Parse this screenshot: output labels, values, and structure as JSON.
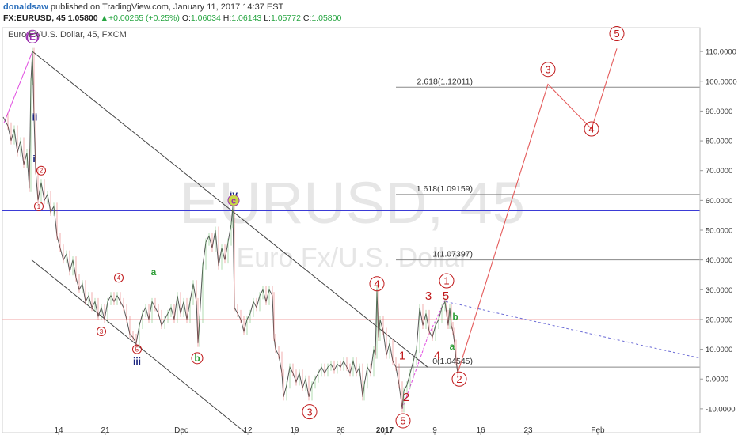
{
  "header": {
    "author": "donaldsaw",
    "published_text": "published on TradingView.com, January 11, 2017 14:37 EST",
    "symbol": "FX:EURUSD, 45",
    "last": "1.05800",
    "change": "+0.00265 (+0.25%)",
    "o_label": "O:",
    "o_value": "1.06034",
    "h_label": "H:",
    "h_value": "1.06143",
    "l_label": "L:",
    "l_value": "1.05772",
    "c_label": "C:",
    "c_value": "1.05800"
  },
  "chart_data": {
    "type": "line",
    "title": "Euro Fx/U.S. Dollar, 45, FXCM",
    "watermark": {
      "symbol": "EURUSD, 45",
      "name": "Euro Fx/U.S. Dollar"
    },
    "y_axis_ticks": [
      "110.0000",
      "100.0000",
      "90.0000",
      "80.0000",
      "70.0000",
      "60.0000",
      "50.0000",
      "40.0000",
      "30.0000",
      "20.0000",
      "10.0000",
      "0.0000",
      "-10.0000"
    ],
    "y_axis_values": [
      110,
      100,
      90,
      80,
      70,
      60,
      50,
      40,
      30,
      20,
      10,
      0,
      -10
    ],
    "ylim": [
      -18,
      118
    ],
    "x_axis_ticks": [
      {
        "label": "14",
        "pos": 74
      },
      {
        "label": "21",
        "pos": 133
      },
      {
        "label": "Dec",
        "pos": 229
      },
      {
        "label": "12",
        "pos": 313
      },
      {
        "label": "19",
        "pos": 372
      },
      {
        "label": "26",
        "pos": 430
      },
      {
        "label": "2017",
        "pos": 486
      },
      {
        "label": "9",
        "pos": 549
      },
      {
        "label": "16",
        "pos": 607
      },
      {
        "label": "23",
        "pos": 667
      },
      {
        "label": "Feb",
        "pos": 755
      }
    ],
    "fib_levels": [
      {
        "label": "2.618(1.12011)",
        "value": 98
      },
      {
        "label": "1.618(1.09159)",
        "value": 62
      },
      {
        "label": "1(1.07397)",
        "value": 40
      },
      {
        "label": "0(1.04545)",
        "value": 4
      }
    ],
    "horizontal_levels": [
      56.5,
      20
    ],
    "price_path": [
      [
        4,
        88
      ],
      [
        10,
        85
      ],
      [
        14,
        80
      ],
      [
        18,
        84
      ],
      [
        22,
        76
      ],
      [
        26,
        80
      ],
      [
        30,
        72
      ],
      [
        34,
        76
      ],
      [
        37,
        64
      ],
      [
        39,
        100
      ],
      [
        41,
        110
      ],
      [
        43,
        88
      ],
      [
        45,
        70
      ],
      [
        48,
        60
      ],
      [
        52,
        66
      ],
      [
        56,
        60
      ],
      [
        60,
        62
      ],
      [
        64,
        56
      ],
      [
        68,
        58
      ],
      [
        72,
        48
      ],
      [
        76,
        44
      ],
      [
        80,
        40
      ],
      [
        84,
        42
      ],
      [
        88,
        36
      ],
      [
        92,
        40
      ],
      [
        96,
        34
      ],
      [
        100,
        30
      ],
      [
        104,
        32
      ],
      [
        108,
        26
      ],
      [
        112,
        28
      ],
      [
        116,
        24
      ],
      [
        120,
        26
      ],
      [
        124,
        21
      ],
      [
        128,
        24
      ],
      [
        132,
        20
      ],
      [
        136,
        26
      ],
      [
        140,
        28
      ],
      [
        144,
        26
      ],
      [
        148,
        28
      ],
      [
        152,
        26
      ],
      [
        156,
        24
      ],
      [
        160,
        20
      ],
      [
        164,
        15
      ],
      [
        168,
        14
      ],
      [
        172,
        12
      ],
      [
        176,
        18
      ],
      [
        180,
        22
      ],
      [
        184,
        24
      ],
      [
        188,
        20
      ],
      [
        192,
        26
      ],
      [
        196,
        24
      ],
      [
        200,
        22
      ],
      [
        204,
        18
      ],
      [
        208,
        20
      ],
      [
        212,
        22
      ],
      [
        216,
        24
      ],
      [
        220,
        20
      ],
      [
        224,
        28
      ],
      [
        228,
        22
      ],
      [
        232,
        26
      ],
      [
        236,
        20
      ],
      [
        240,
        26
      ],
      [
        244,
        32
      ],
      [
        248,
        26
      ],
      [
        250,
        12
      ],
      [
        252,
        20
      ],
      [
        256,
        38
      ],
      [
        260,
        46
      ],
      [
        264,
        48
      ],
      [
        268,
        44
      ],
      [
        272,
        50
      ],
      [
        276,
        38
      ],
      [
        280,
        44
      ],
      [
        284,
        40
      ],
      [
        288,
        46
      ],
      [
        292,
        52
      ],
      [
        294,
        58
      ],
      [
        296,
        24
      ],
      [
        300,
        22
      ],
      [
        304,
        20
      ],
      [
        308,
        16
      ],
      [
        312,
        20
      ],
      [
        316,
        22
      ],
      [
        320,
        26
      ],
      [
        324,
        24
      ],
      [
        328,
        28
      ],
      [
        332,
        30
      ],
      [
        336,
        26
      ],
      [
        340,
        30
      ],
      [
        344,
        28
      ],
      [
        346,
        14
      ],
      [
        348,
        10
      ],
      [
        352,
        8
      ],
      [
        356,
        2
      ],
      [
        358,
        -6
      ],
      [
        362,
        -2
      ],
      [
        366,
        4
      ],
      [
        370,
        2
      ],
      [
        374,
        -1
      ],
      [
        378,
        2
      ],
      [
        382,
        -3
      ],
      [
        386,
        0
      ],
      [
        390,
        -6
      ],
      [
        394,
        -2
      ],
      [
        398,
        0
      ],
      [
        402,
        2
      ],
      [
        406,
        4
      ],
      [
        410,
        2
      ],
      [
        414,
        4
      ],
      [
        418,
        5
      ],
      [
        422,
        3
      ],
      [
        426,
        5
      ],
      [
        430,
        4
      ],
      [
        434,
        6
      ],
      [
        438,
        4
      ],
      [
        442,
        2
      ],
      [
        446,
        6
      ],
      [
        450,
        2
      ],
      [
        454,
        4
      ],
      [
        458,
        -6
      ],
      [
        460,
        -2
      ],
      [
        464,
        4
      ],
      [
        468,
        2
      ],
      [
        472,
        10
      ],
      [
        474,
        8
      ],
      [
        476,
        30
      ],
      [
        478,
        14
      ],
      [
        480,
        20
      ],
      [
        484,
        16
      ],
      [
        488,
        8
      ],
      [
        492,
        12
      ],
      [
        496,
        6
      ],
      [
        500,
        4
      ],
      [
        504,
        -2
      ],
      [
        508,
        -10
      ],
      [
        510,
        -4
      ],
      [
        514,
        -2
      ],
      [
        518,
        2
      ],
      [
        522,
        6
      ],
      [
        526,
        10
      ],
      [
        530,
        24
      ],
      [
        534,
        18
      ],
      [
        538,
        22
      ],
      [
        542,
        16
      ],
      [
        546,
        14
      ],
      [
        550,
        18
      ],
      [
        554,
        20
      ],
      [
        558,
        24
      ],
      [
        562,
        26
      ],
      [
        564,
        22
      ],
      [
        566,
        18
      ],
      [
        568,
        24
      ],
      [
        570,
        18
      ],
      [
        572,
        16
      ],
      [
        574,
        12
      ],
      [
        576,
        6
      ],
      [
        578,
        2
      ]
    ],
    "channel_lines": [
      {
        "x1": 41,
        "y1": 110,
        "x2": 540,
        "y2": 4
      },
      {
        "x1": 40,
        "y1": 40,
        "x2": 310,
        "y2": -18
      }
    ],
    "projection": [
      [
        578,
        2
      ],
      [
        692,
        99
      ],
      [
        747,
        84
      ],
      [
        779,
        111
      ]
    ],
    "dotted_line": {
      "x1": 563,
      "y1": 26,
      "x2": 884,
      "y2": 7
    },
    "wave_labels": [
      {
        "text": "(E)",
        "x": 41,
        "y": 115,
        "style": "circle-purple"
      },
      {
        "text": "ii",
        "x": 44,
        "y": 88,
        "style": "navy"
      },
      {
        "text": "i",
        "x": 43,
        "y": 74,
        "style": "navy"
      },
      {
        "text": "2",
        "x": 52,
        "y": 70,
        "style": "circle-small"
      },
      {
        "text": "1",
        "x": 49,
        "y": 58,
        "style": "circle-small"
      },
      {
        "text": "4",
        "x": 150,
        "y": 34,
        "style": "circle-small"
      },
      {
        "text": "a",
        "x": 194,
        "y": 36,
        "style": "green"
      },
      {
        "text": "3",
        "x": 128,
        "y": 16,
        "style": "circle-small"
      },
      {
        "text": "5",
        "x": 173,
        "y": 10,
        "style": "circle-small"
      },
      {
        "text": "iii",
        "x": 173,
        "y": 6,
        "style": "navy"
      },
      {
        "text": "b",
        "x": 249,
        "y": 7,
        "style": "circle-green"
      },
      {
        "text": "iv",
        "x": 295,
        "y": 62,
        "style": "navy"
      },
      {
        "text": "c",
        "x": 295,
        "y": 60,
        "style": "circle-purple-green"
      },
      {
        "text": "3",
        "x": 391,
        "y": -11,
        "style": "circle-red"
      },
      {
        "text": "4",
        "x": 476,
        "y": 32,
        "style": "circle-red"
      },
      {
        "text": "1",
        "x": 508,
        "y": 8,
        "style": "red"
      },
      {
        "text": "2",
        "x": 513,
        "y": -6,
        "style": "red"
      },
      {
        "text": "5",
        "x": 509,
        "y": -14,
        "style": "circle-red"
      },
      {
        "text": "4",
        "x": 552,
        "y": 8,
        "style": "red"
      },
      {
        "text": "3",
        "x": 541,
        "y": 28,
        "style": "red"
      },
      {
        "text": "5",
        "x": 563,
        "y": 28,
        "style": "red"
      },
      {
        "text": "1",
        "x": 564,
        "y": 33,
        "style": "circle-red"
      },
      {
        "text": "b",
        "x": 575,
        "y": 21,
        "style": "green"
      },
      {
        "text": "a",
        "x": 571,
        "y": 11,
        "style": "green"
      },
      {
        "text": "2",
        "x": 580,
        "y": 0,
        "style": "circle-red"
      },
      {
        "text": "3",
        "x": 692,
        "y": 104,
        "style": "circle-red"
      },
      {
        "text": "4",
        "x": 747,
        "y": 84,
        "style": "circle-red"
      },
      {
        "text": "5",
        "x": 779,
        "y": 116,
        "style": "circle-red"
      }
    ],
    "colors": {
      "price": "#555555",
      "red": "#c0181a",
      "projection": "#e45a5a",
      "purple": "#9b2fae",
      "navy": "#1a237e",
      "green": "#2e9d36",
      "blue_level": "#3b3bd6",
      "dotted": "#6b6bd6",
      "fib": "#777777"
    },
    "grid": false
  }
}
